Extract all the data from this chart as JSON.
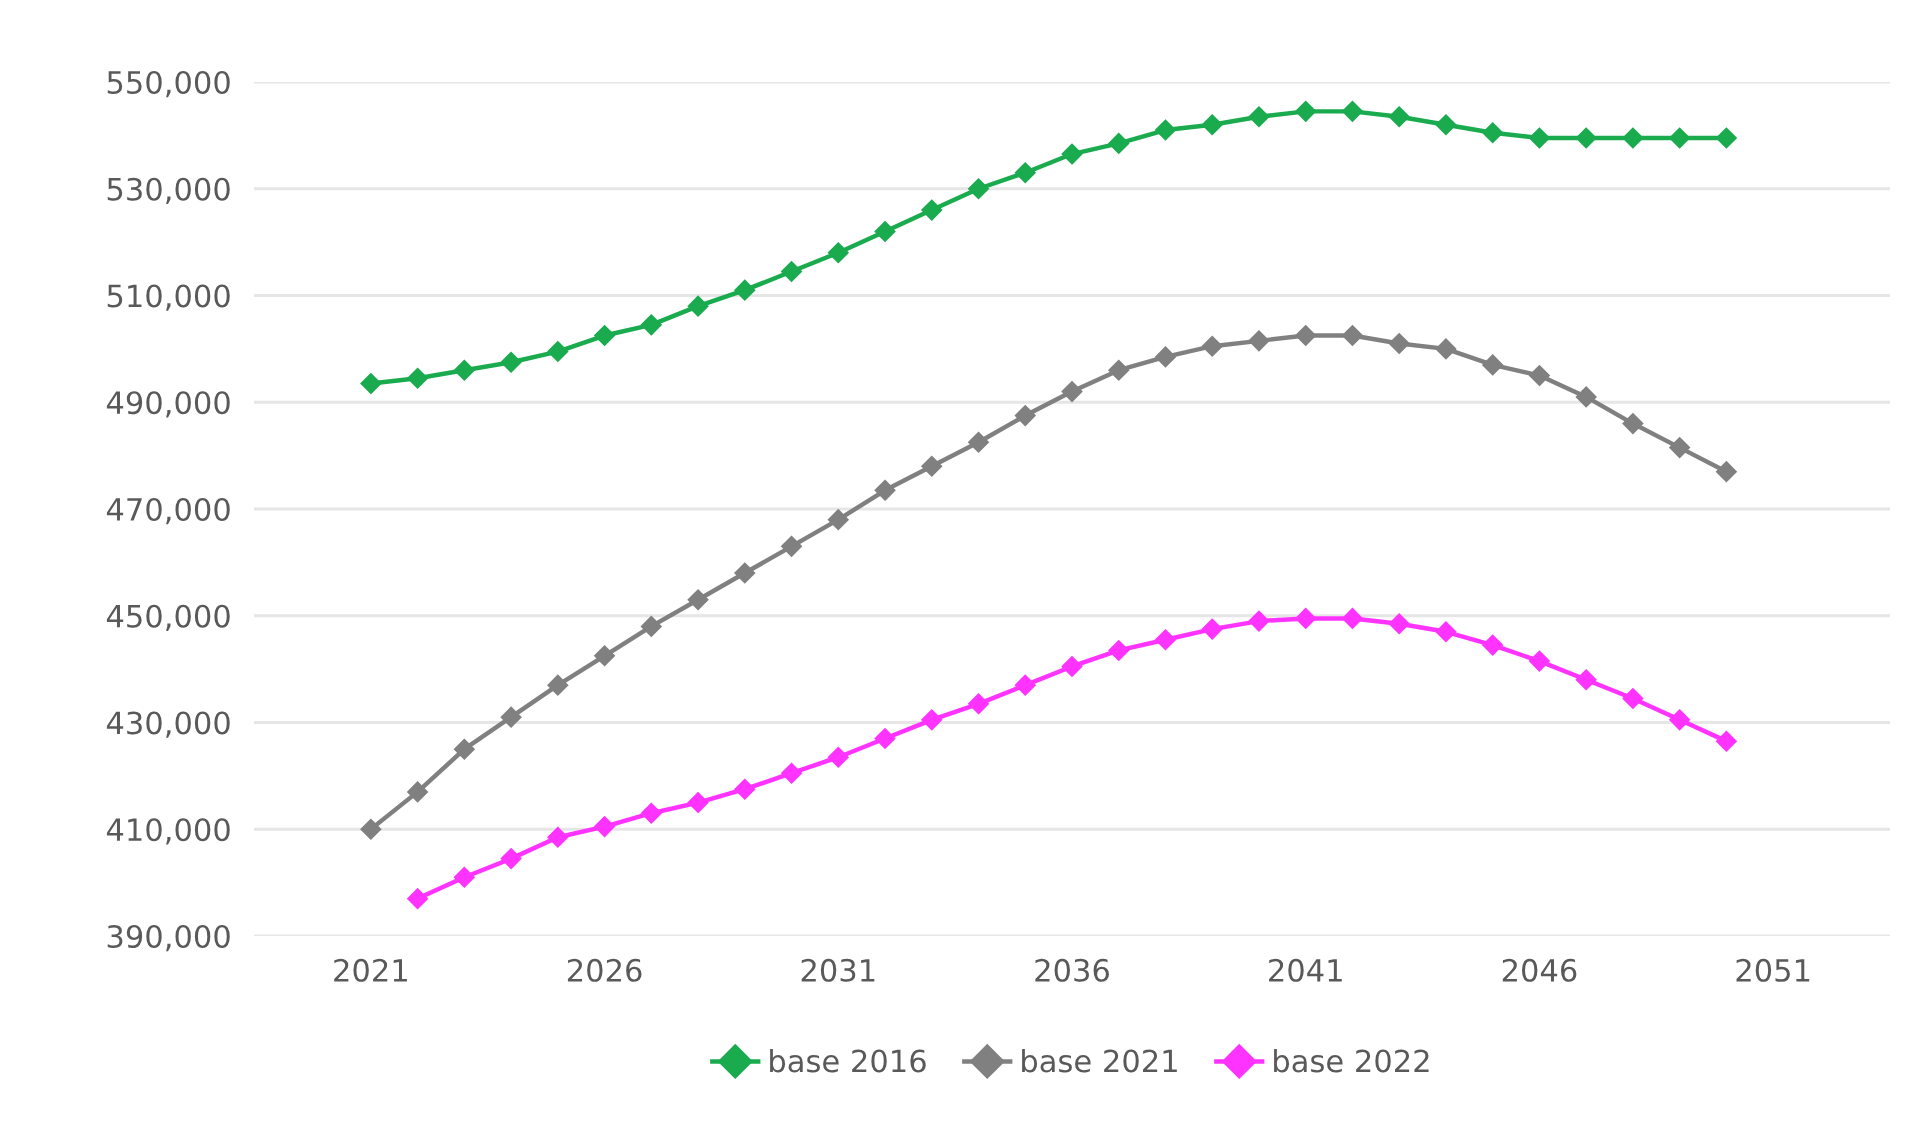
{
  "chart_data": {
    "type": "line",
    "x": [
      2021,
      2022,
      2023,
      2024,
      2025,
      2026,
      2027,
      2028,
      2029,
      2030,
      2031,
      2032,
      2033,
      2034,
      2035,
      2036,
      2037,
      2038,
      2039,
      2040,
      2041,
      2042,
      2043,
      2044,
      2045,
      2046,
      2047,
      2048,
      2049,
      2050
    ],
    "series": [
      {
        "name": "base 2016",
        "color": "#1aab4f",
        "values": [
          493500,
          494500,
          496000,
          497500,
          499500,
          502500,
          504500,
          508000,
          511000,
          514500,
          518000,
          522000,
          526000,
          530000,
          533000,
          536500,
          538500,
          541000,
          542000,
          543500,
          544500,
          544500,
          543500,
          542000,
          540500,
          539500,
          539500,
          539500,
          539500,
          539500
        ]
      },
      {
        "name": "base 2021",
        "color": "#808080",
        "values": [
          410000,
          417000,
          425000,
          431000,
          437000,
          442500,
          448000,
          453000,
          458000,
          463000,
          468000,
          473500,
          478000,
          482500,
          487500,
          492000,
          496000,
          498500,
          500500,
          501500,
          502500,
          502500,
          501000,
          500000,
          497000,
          495000,
          491000,
          486000,
          481500,
          477000
        ]
      },
      {
        "name": "base 2022",
        "color": "#ff33ff",
        "values": [
          null,
          397000,
          401000,
          404500,
          408500,
          410500,
          413000,
          415000,
          417500,
          420500,
          423500,
          427000,
          430500,
          433500,
          437000,
          440500,
          443500,
          445500,
          447500,
          449000,
          449500,
          449500,
          448500,
          447000,
          444500,
          441500,
          438000,
          434500,
          430500,
          426500
        ]
      }
    ],
    "xlim": [
      2018.5,
      2053.5
    ],
    "xticks": [
      2021,
      2026,
      2031,
      2036,
      2041,
      2046,
      2051
    ],
    "ylim": [
      390000,
      550000
    ],
    "yticks": [
      {
        "value": 390000,
        "label": "390,000"
      },
      {
        "value": 410000,
        "label": "410,000"
      },
      {
        "value": 430000,
        "label": "430,000"
      },
      {
        "value": 450000,
        "label": "450,000"
      },
      {
        "value": 470000,
        "label": "470,000"
      },
      {
        "value": 490000,
        "label": "490,000"
      },
      {
        "value": 510000,
        "label": "510,000"
      },
      {
        "value": 530000,
        "label": "530,000"
      },
      {
        "value": 550000,
        "label": "550,000"
      }
    ],
    "grid": "y",
    "legend": "bottom",
    "marker": "diamond",
    "line_style": "solid"
  }
}
